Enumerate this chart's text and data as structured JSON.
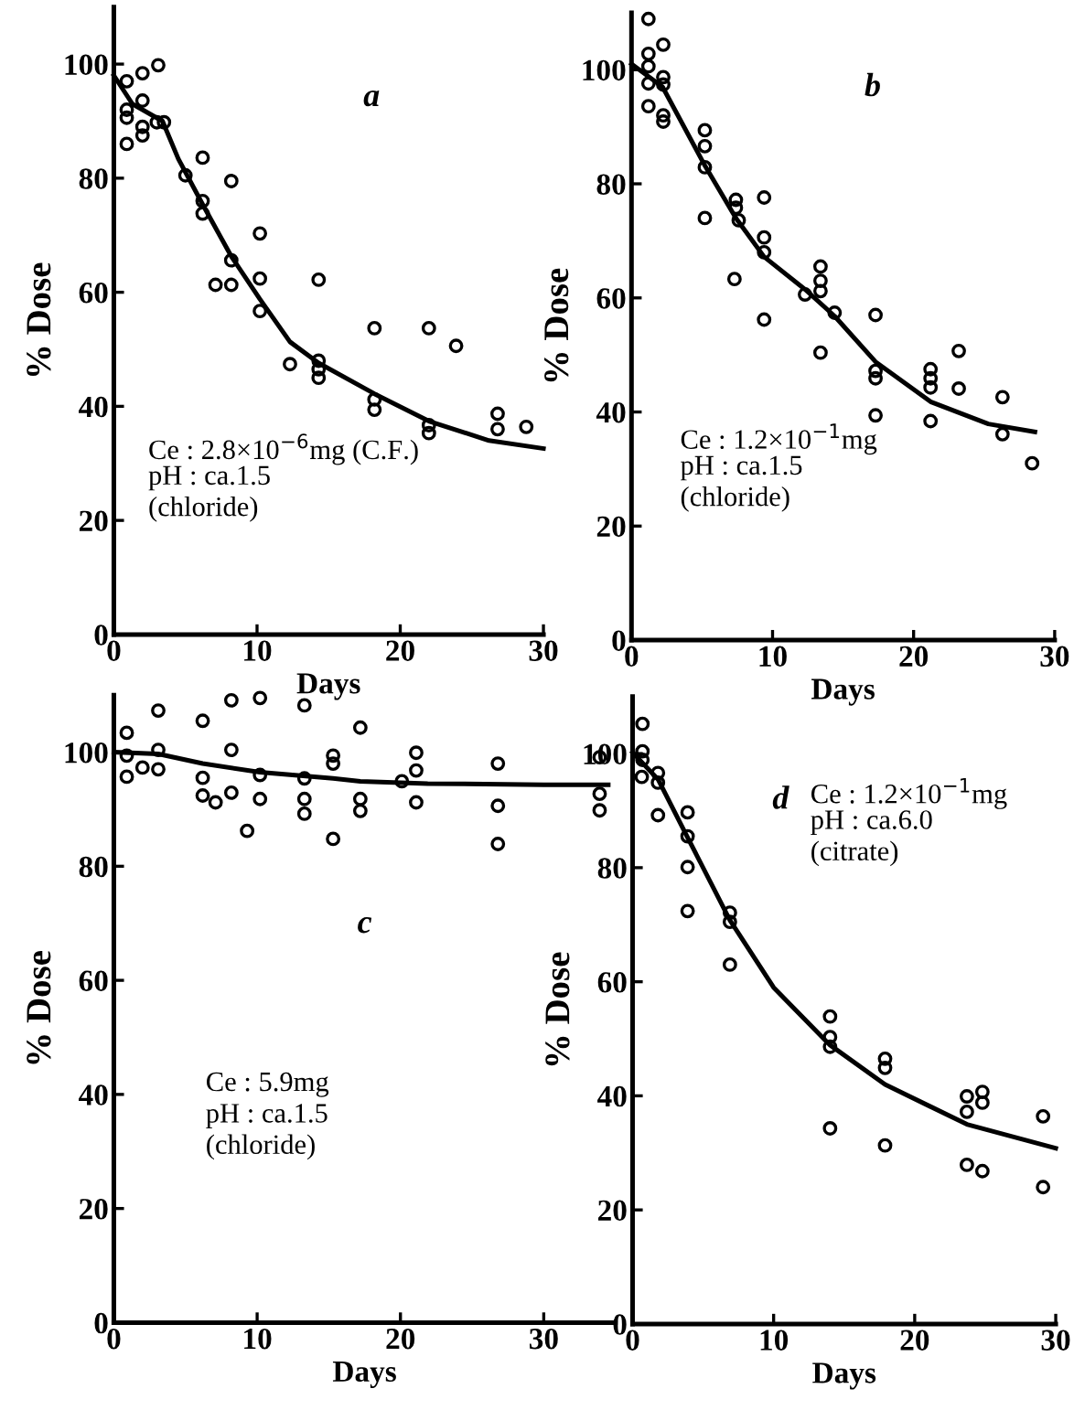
{
  "chart_data": [
    {
      "type": "scatter",
      "xlabel": "Days",
      "ylabel": "% Dose",
      "xlim": [
        0,
        30
      ],
      "ylim": [
        0,
        110
      ],
      "xticks": [
        0,
        10,
        20,
        30
      ],
      "yticks": [
        0,
        20,
        40,
        60,
        80,
        100
      ],
      "annotations": [
        "a",
        "Ce : 2.8×10$^{−6}$mg (C.F.)",
        "pH : ca.1.5",
        "(chloride)"
      ],
      "series": [
        {
          "marker": "circle",
          "color": "#000000",
          "x": [
            0.9,
            0.9,
            0.9,
            0.9,
            2,
            2,
            2,
            2,
            3.1,
            3,
            3.5,
            5,
            6.2,
            6.2,
            6.2,
            7.1,
            8.2,
            8.2,
            8.2,
            10.2,
            10.2,
            10.2,
            12.3,
            14.3,
            14.3,
            14.3,
            14.3,
            18.2,
            18.2,
            18.2,
            22,
            22,
            22,
            23.9,
            26.8,
            26.8,
            28.8
          ],
          "values": [
            97,
            92,
            90.6,
            86,
            98.4,
            93.6,
            89,
            87.5,
            99.8,
            89.8,
            89.8,
            80.5,
            83.6,
            76,
            73.8,
            61.3,
            61.3,
            79.5,
            65.6,
            70.3,
            62.4,
            56.7,
            47.4,
            62.2,
            48,
            46.5,
            45,
            53.7,
            41.2,
            39.4,
            53.7,
            36.7,
            35.3,
            50.6,
            38.7,
            36,
            36.4
          ]
        },
        {
          "type": "line",
          "color": "#000000",
          "x": [
            0,
            1.3,
            3.4,
            4.5,
            6.2,
            8.2,
            10.2,
            12.3,
            14.3,
            18.2,
            22,
            26.2,
            30
          ],
          "values": [
            98,
            93,
            90,
            83.4,
            75.4,
            66.3,
            58.8,
            51.3,
            47.6,
            42.2,
            37.4,
            34,
            32.6
          ]
        }
      ]
    },
    {
      "type": "scatter",
      "xlabel": "Days",
      "ylabel": "% Dose",
      "xlim": [
        0,
        30
      ],
      "ylim": [
        0,
        110
      ],
      "xticks": [
        0,
        10,
        20,
        30
      ],
      "yticks": [
        0,
        20,
        40,
        60,
        80,
        100
      ],
      "annotations": [
        "b",
        "Ce : 1.2×10$^{−1}$mg",
        "pH : ca.1.5",
        "(chloride)"
      ],
      "series": [
        {
          "marker": "circle",
          "color": "#000000",
          "x": [
            1.2,
            1.2,
            1.2,
            1.2,
            1.2,
            2.25,
            2.25,
            2.25,
            2.25,
            2.25,
            5.2,
            5.2,
            5.2,
            5.2,
            7.4,
            7.4,
            7.6,
            7.3,
            9.4,
            9.4,
            9.4,
            9.4,
            12.3,
            13.4,
            13.4,
            13.4,
            13.4,
            14.4,
            17.3,
            17.3,
            17.3,
            17.3,
            21.2,
            21.2,
            21.2,
            21.2,
            23.2,
            23.2,
            26.3,
            26.3,
            28.4
          ],
          "values": [
            108.9,
            102.8,
            100.6,
            97.6,
            93.6,
            104.4,
            98.7,
            97.4,
            92,
            90.9,
            89.4,
            86.6,
            82.9,
            74,
            77.2,
            75.8,
            73.6,
            63.3,
            77.6,
            70.6,
            68,
            56.2,
            60.6,
            65.5,
            63,
            61.2,
            50.4,
            57.4,
            57,
            47.2,
            45.9,
            39.4,
            47.5,
            45.9,
            44.3,
            38.4,
            50.7,
            44.1,
            42.6,
            36.1,
            31
          ]
        },
        {
          "type": "line",
          "color": "#000000",
          "x": [
            0,
            2.2,
            5.2,
            7.4,
            9.4,
            12.3,
            14.4,
            17.3,
            21.2,
            25.3,
            28.6
          ],
          "values": [
            101,
            97,
            83.2,
            74,
            67.2,
            61.5,
            56.8,
            48.8,
            41.8,
            37.9,
            36.5
          ]
        }
      ]
    },
    {
      "type": "scatter",
      "xlabel": "Days",
      "ylabel": "% Dose",
      "xlim": [
        0,
        35
      ],
      "ylim": [
        0,
        110
      ],
      "xticks": [
        0,
        10,
        20,
        30
      ],
      "yticks": [
        0,
        20,
        40,
        60,
        80,
        100
      ],
      "annotations": [
        "c",
        "Ce : 5.9mg",
        "pH : ca.1.5",
        "(chloride)"
      ],
      "series": [
        {
          "marker": "circle",
          "color": "#000000",
          "x": [
            0.9,
            0.9,
            0.9,
            2,
            3.1,
            3.1,
            3.1,
            6.2,
            6.2,
            6.2,
            7.1,
            8.2,
            8.2,
            8.2,
            9.3,
            10.2,
            10.2,
            10.2,
            13.3,
            13.3,
            13.3,
            13.3,
            15.3,
            15.3,
            15.3,
            17.2,
            17.2,
            17.2,
            20.1,
            21.1,
            21.1,
            21.1,
            26.8,
            26.8,
            26.8,
            33.9,
            33.9,
            33.9
          ],
          "values": [
            103.4,
            99.4,
            95.7,
            97.3,
            107.3,
            100.4,
            97,
            105.5,
            95.5,
            92.4,
            91.2,
            109.1,
            100.4,
            92.9,
            86.2,
            109.5,
            96,
            91.8,
            108.2,
            95.4,
            91.8,
            89.2,
            99.4,
            98,
            84.8,
            104.3,
            91.8,
            89.7,
            94.9,
            99.9,
            96.8,
            91.2,
            98,
            90.6,
            83.9,
            99.1,
            92.7,
            89.8
          ]
        },
        {
          "type": "line",
          "color": "#000000",
          "x": [
            0,
            3.1,
            6.2,
            10.2,
            15.3,
            17.2,
            21.9,
            30,
            34.5
          ],
          "values": [
            100,
            99.7,
            98,
            96.5,
            95.4,
            94.9,
            94.5,
            94.3,
            94.3
          ]
        }
      ]
    },
    {
      "type": "scatter",
      "xlabel": "Days",
      "ylabel": "% Dose",
      "xlim": [
        0,
        30
      ],
      "ylim": [
        0,
        110
      ],
      "xticks": [
        0,
        10,
        20,
        30
      ],
      "yticks": [
        0,
        20,
        40,
        60,
        80,
        100
      ],
      "annotations": [
        "d",
        "Ce : 1.2×10$^{−1}$mg",
        "pH : ca.6.0",
        "(citrate)"
      ],
      "series": [
        {
          "marker": "circle",
          "color": "#000000",
          "x": [
            0.7,
            0.7,
            0.7,
            0.65,
            1.8,
            1.8,
            1.8,
            3.9,
            3.9,
            3.9,
            3.9,
            6.9,
            6.9,
            6.9,
            14,
            14,
            14,
            14,
            17.9,
            17.9,
            17.9,
            23.7,
            23.7,
            23.7,
            24.8,
            24.8,
            24.8,
            29.1,
            29.1
          ],
          "values": [
            105.2,
            100.4,
            98.9,
            95.9,
            96.6,
            94.9,
            89.2,
            89.7,
            85.5,
            80.1,
            72.4,
            72.1,
            70.5,
            63,
            53.9,
            50.3,
            48.6,
            34.3,
            46.5,
            44.9,
            31.3,
            39.9,
            37.2,
            27.9,
            40.7,
            38.8,
            26.8,
            36.4,
            24
          ]
        },
        {
          "type": "line",
          "color": "#000000",
          "x": [
            0,
            1.8,
            3.9,
            6.9,
            10,
            14,
            17.9,
            23.7,
            30
          ],
          "values": [
            100.2,
            95.5,
            85.3,
            70.8,
            59,
            48.9,
            42,
            35,
            30.8
          ]
        }
      ]
    }
  ]
}
